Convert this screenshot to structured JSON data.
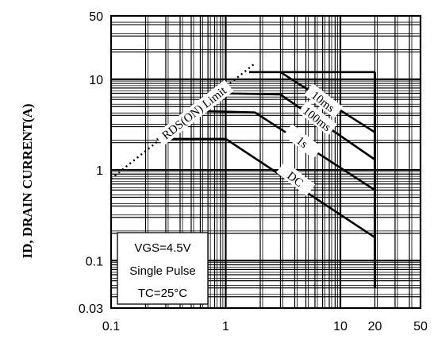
{
  "chart_data": {
    "type": "line",
    "title": "",
    "xlabel": "",
    "ylabel": "ID, DRAIN CURRENT(A)",
    "xscale": "log",
    "yscale": "log",
    "xlim": [
      0.1,
      50
    ],
    "ylim": [
      0.03,
      50
    ],
    "grid": true,
    "x_ticks": [
      {
        "value": 0.1,
        "label": "0.1"
      },
      {
        "value": 1,
        "label": "1"
      },
      {
        "value": 10,
        "label": "10"
      },
      {
        "value": 20,
        "label": "20"
      },
      {
        "value": 50,
        "label": "50"
      }
    ],
    "y_ticks": [
      {
        "value": 50,
        "label": "50"
      },
      {
        "value": 10,
        "label": "10"
      },
      {
        "value": 1,
        "label": "1"
      },
      {
        "value": 0.1,
        "label": "0.1"
      },
      {
        "value": 0.03,
        "label": "0.03"
      }
    ],
    "series": [
      {
        "name": "10ms",
        "x": [
          1.6,
          3.0,
          20
        ],
        "y": [
          12,
          12,
          2.6
        ]
      },
      {
        "name": "100ms",
        "x": [
          0.9,
          3.0,
          20
        ],
        "y": [
          7.0,
          6.8,
          1.3
        ]
      },
      {
        "name": "1s",
        "x": [
          0.5,
          1.8,
          20
        ],
        "y": [
          4.5,
          4.3,
          0.6
        ]
      },
      {
        "name": "DC",
        "x": [
          0.25,
          1.0,
          20
        ],
        "y": [
          2.2,
          2.2,
          0.18
        ]
      }
    ],
    "limit_line": {
      "name": "RDS(ON) Limit",
      "x": [
        0.1,
        1.8
      ],
      "y": [
        0.8,
        15
      ],
      "style": "dotted"
    },
    "vds_limit": {
      "x": 20,
      "y": [
        0.05,
        12
      ]
    },
    "conditions": [
      "VGS=4.5V",
      "Single Pulse",
      "TC=25°C"
    ]
  }
}
